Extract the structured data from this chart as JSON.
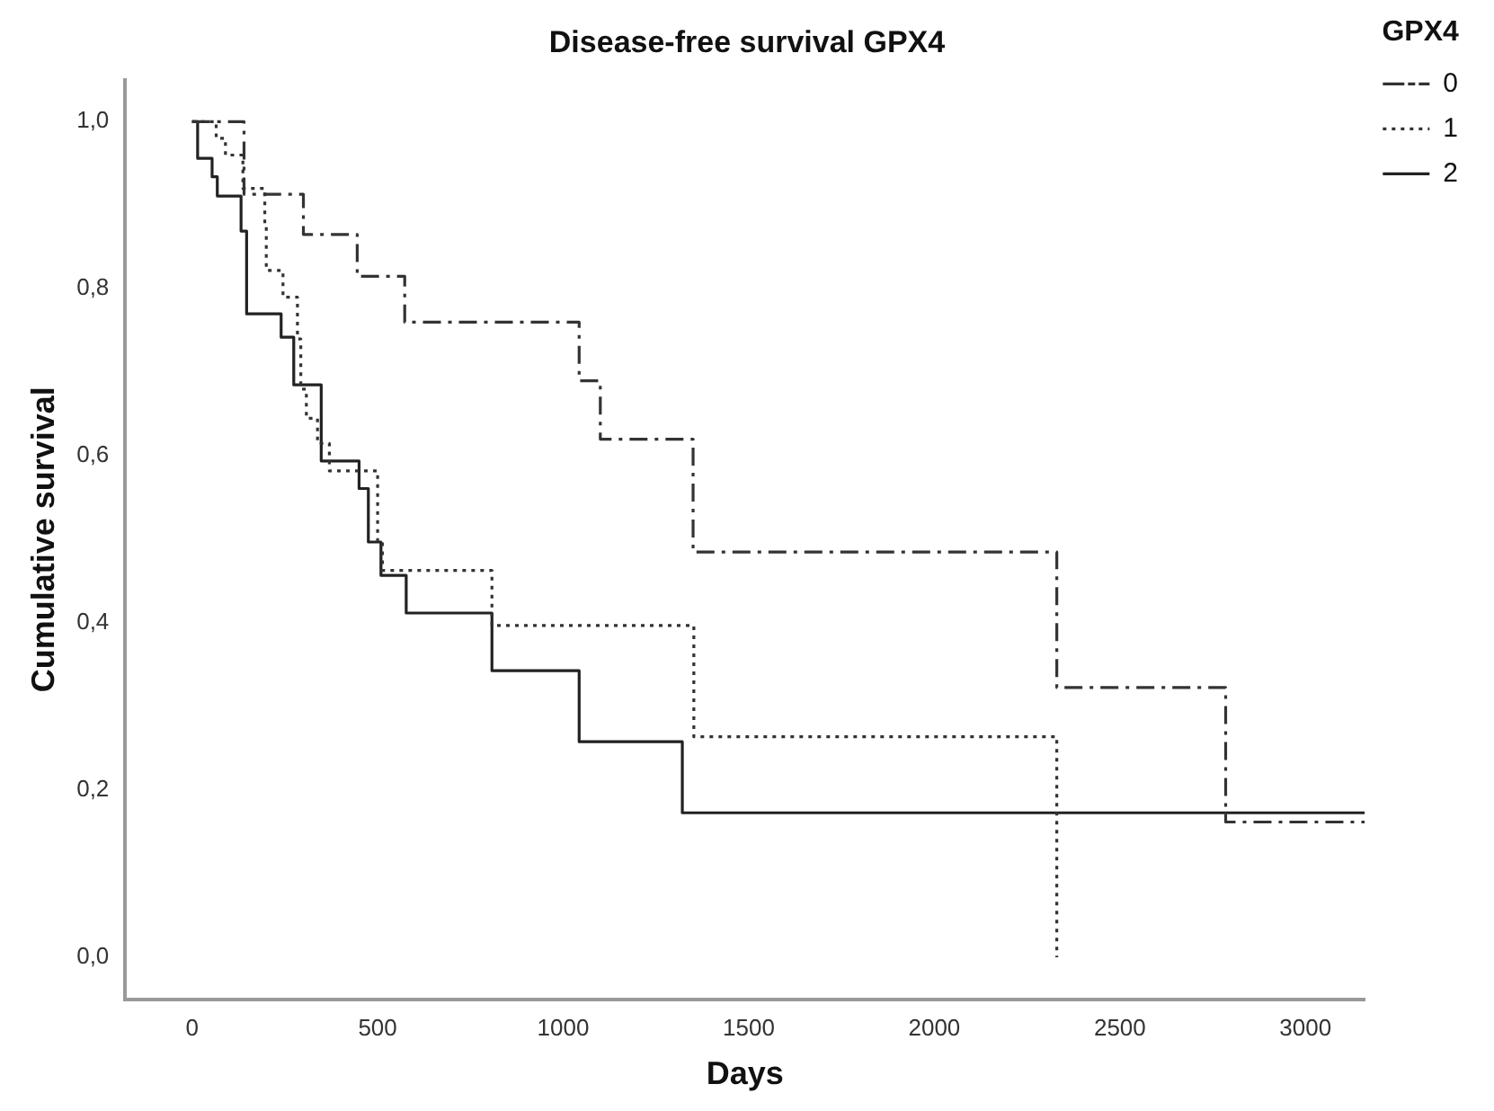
{
  "chart_data": {
    "type": "step",
    "title": "Disease-free survival GPX4",
    "xlabel": "Days",
    "ylabel": "Cumulative survival",
    "legend_title": "GPX4",
    "legend": "top right",
    "grid": false,
    "marker": "none",
    "xlim": [
      -180,
      3160
    ],
    "xticks": [
      0,
      500,
      1000,
      1500,
      2000,
      2500,
      3000
    ],
    "ylim": [
      -0.05,
      1.05
    ],
    "yticks": [
      {
        "value": 0,
        "label": "0,0"
      },
      {
        "value": 0.2,
        "label": "0,2"
      },
      {
        "value": 0.4,
        "label": "0,4"
      },
      {
        "value": 0.6,
        "label": "0,6"
      },
      {
        "value": 0.8,
        "label": "0,8"
      },
      {
        "value": 1,
        "label": "1,0"
      }
    ],
    "series": [
      {
        "name": "0",
        "color": "#333333",
        "line_style": "dashdot",
        "x": [
          0,
          140,
          300,
          445,
          573,
          1043,
          1100,
          1350,
          2330,
          2785,
          3160
        ],
        "values": [
          1.0,
          0.913,
          0.865,
          0.815,
          0.76,
          0.69,
          0.62,
          0.485,
          0.323,
          0.162,
          0.162
        ]
      },
      {
        "name": "1",
        "color": "#333333",
        "line_style": "dotted",
        "x": [
          0,
          65,
          90,
          137,
          196,
          200,
          245,
          284,
          293,
          308,
          338,
          370,
          500,
          513,
          808,
          1352,
          2330
        ],
        "values": [
          1.0,
          0.98,
          0.96,
          0.92,
          0.875,
          0.822,
          0.79,
          0.74,
          0.68,
          0.645,
          0.615,
          0.582,
          0.497,
          0.463,
          0.397,
          0.264,
          0.0
        ]
      },
      {
        "name": "2",
        "color": "#222222",
        "line_style": "solid",
        "x": [
          0,
          15,
          54,
          68,
          132,
          147,
          240,
          274,
          348,
          450,
          475,
          509,
          577,
          808,
          1043,
          1321,
          3160
        ],
        "values": [
          1.0,
          0.956,
          0.934,
          0.911,
          0.869,
          0.77,
          0.742,
          0.685,
          0.594,
          0.561,
          0.497,
          0.457,
          0.412,
          0.343,
          0.258,
          0.173,
          0.173
        ]
      }
    ]
  }
}
